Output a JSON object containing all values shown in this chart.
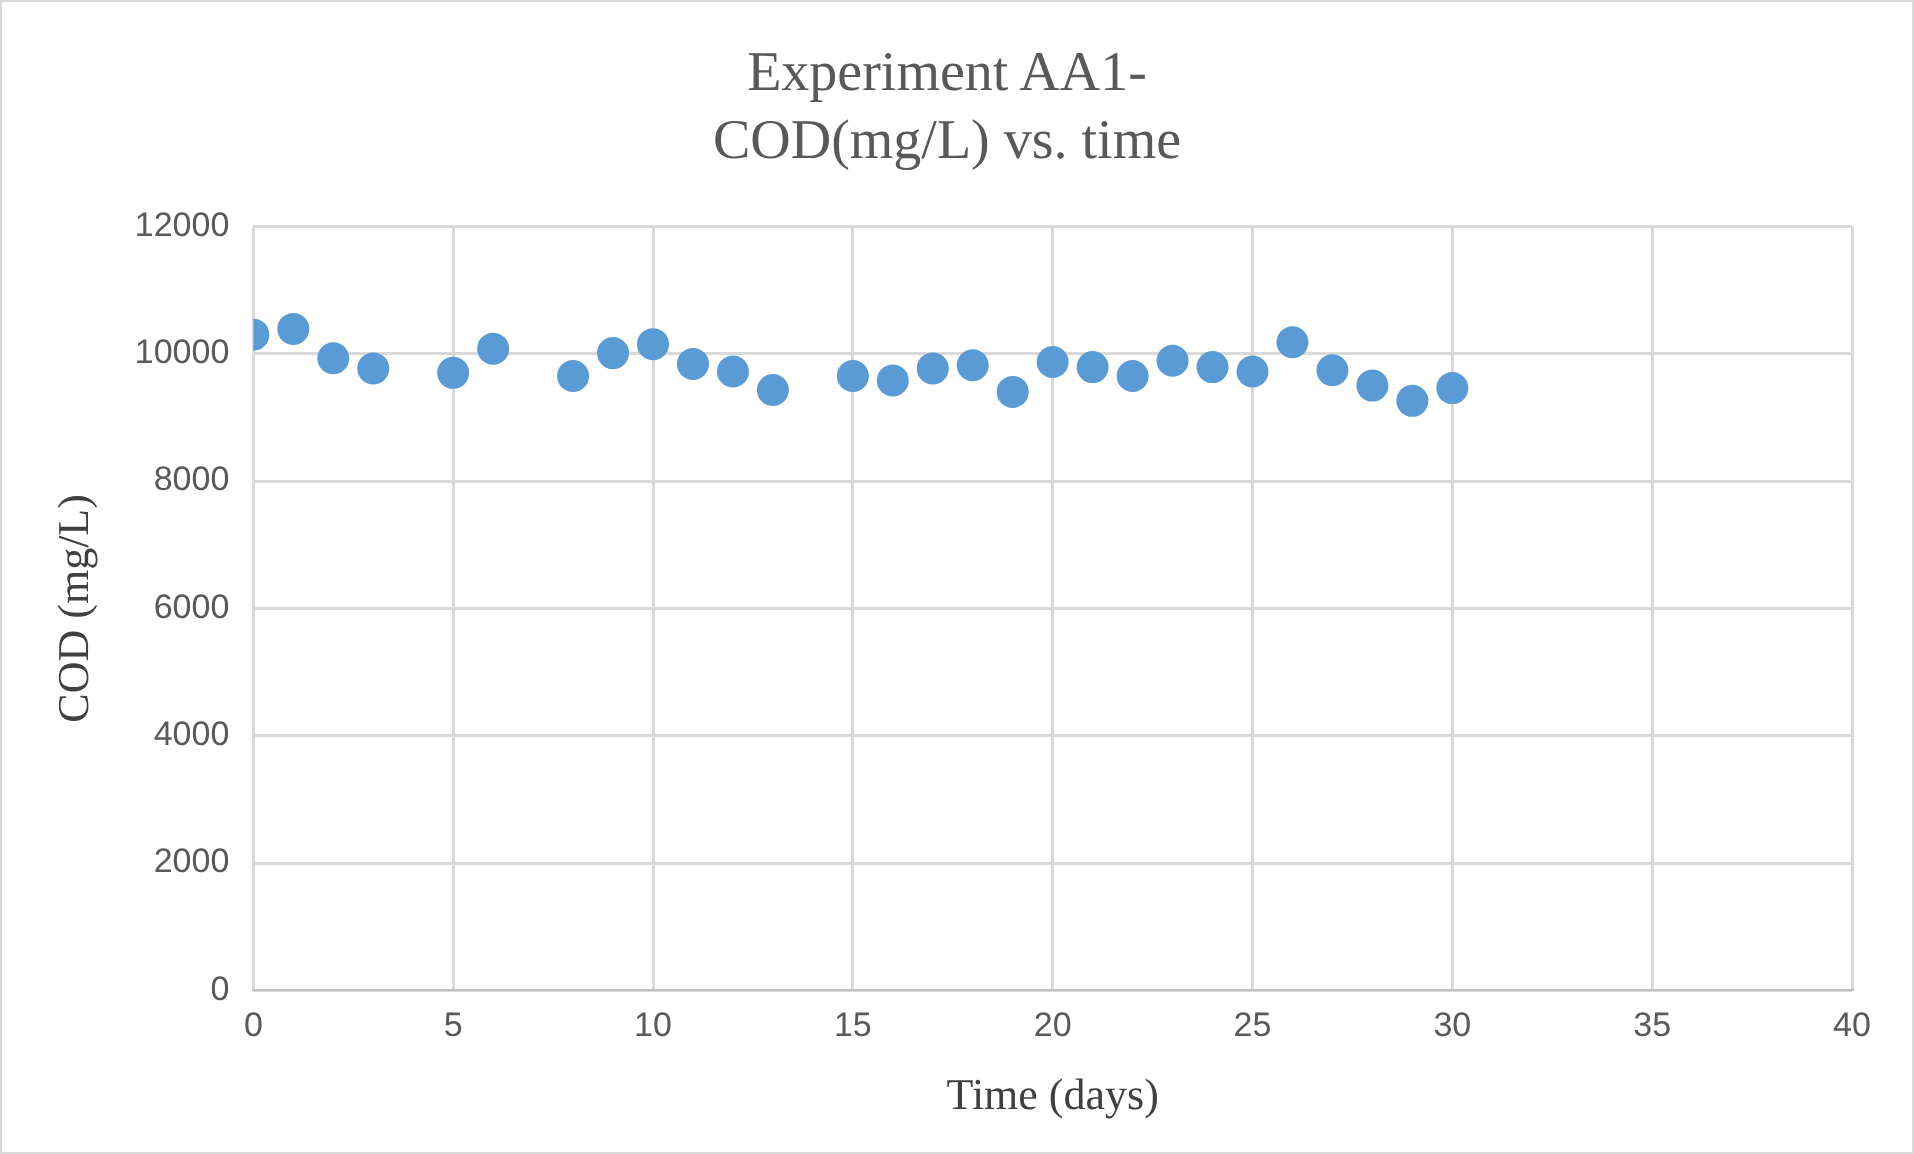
{
  "chart_data": {
    "type": "scatter",
    "title": [
      "Experiment AA1-",
      "COD(mg/L) vs. time"
    ],
    "xlabel": "Time (days)",
    "ylabel": "COD (mg/L)",
    "x": [
      0,
      1,
      2,
      3,
      5,
      6,
      8,
      9,
      10,
      11,
      12,
      13,
      15,
      16,
      17,
      18,
      19,
      20,
      21,
      22,
      23,
      24,
      25,
      26,
      27,
      28,
      29,
      30
    ],
    "series": [
      {
        "color": "#5b9bd5",
        "values": [
          10300,
          10390,
          9930,
          9770,
          9700,
          10080,
          9650,
          10010,
          10150,
          9840,
          9720,
          9430,
          9650,
          9580,
          9770,
          9820,
          9400,
          9870,
          9790,
          9650,
          9890,
          9790,
          9720,
          10180,
          9740,
          9500,
          9260,
          9460
        ]
      }
    ],
    "xlim": [
      0,
      40
    ],
    "xticks": [
      0,
      5,
      10,
      15,
      20,
      25,
      30,
      35,
      40
    ],
    "ylim": [
      0,
      12000
    ],
    "yticks": [
      0,
      2000,
      4000,
      6000,
      8000,
      10000,
      12000
    ],
    "grid": true,
    "legend": false,
    "marker": "circle"
  }
}
